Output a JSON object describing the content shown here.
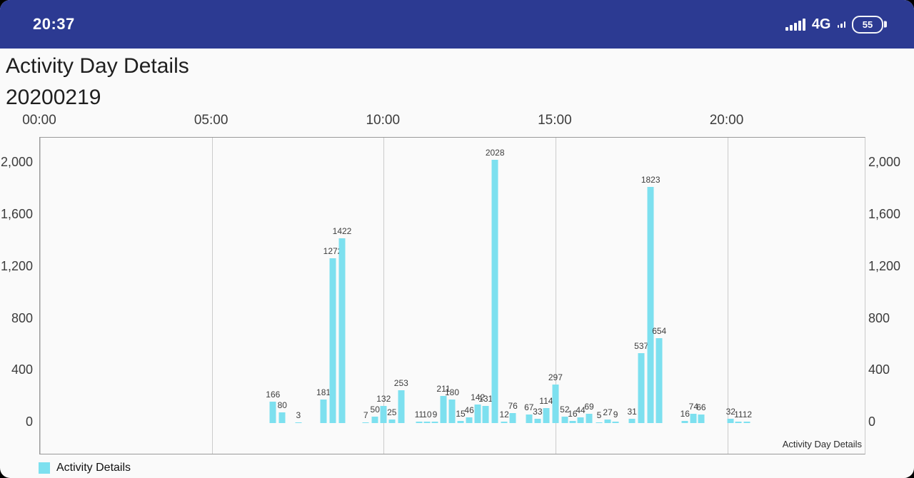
{
  "status_bar": {
    "time": "20:37",
    "network": "4G",
    "battery_percent": "55",
    "colors": {
      "background": "#2c3a92",
      "foreground": "#ffffff"
    }
  },
  "header": {
    "title": "Activity Day Details",
    "date": "20200219"
  },
  "chart_data": {
    "type": "bar",
    "title": "Activity Day Details",
    "subtitle": "20200219",
    "description": "Activity Day Details",
    "legend_label": "Activity Details",
    "legend_position": "bottom-left",
    "bar_color": "#7de0ef",
    "grid": "vertical-only",
    "x_axis": {
      "position": "top",
      "unit": "time-of-day",
      "range_hours": [
        0,
        24
      ],
      "tick_hours": [
        0,
        5,
        10,
        15,
        20
      ],
      "ticks": [
        "00:00",
        "05:00",
        "10:00",
        "15:00",
        "20:00"
      ]
    },
    "y_axis": {
      "sides": "both",
      "max": 2200,
      "tick_values": [
        0,
        400,
        800,
        1200,
        1600,
        2000
      ],
      "ticks": [
        "0",
        "400",
        "800",
        "1,200",
        "1,600",
        "2,000"
      ]
    },
    "series": [
      {
        "name": "Activity Details",
        "color": "#7de0ef",
        "points_format": [
          "hour",
          "value"
        ],
        "points": [
          [
            6.78,
            166
          ],
          [
            7.05,
            80
          ],
          [
            7.52,
            3
          ],
          [
            8.25,
            181
          ],
          [
            8.52,
            1272
          ],
          [
            8.79,
            1422
          ],
          [
            9.48,
            7
          ],
          [
            9.75,
            50
          ],
          [
            10.0,
            132
          ],
          [
            10.24,
            25
          ],
          [
            10.51,
            253
          ],
          [
            11.03,
            11
          ],
          [
            11.26,
            10
          ],
          [
            11.49,
            9
          ],
          [
            11.74,
            211
          ],
          [
            11.99,
            180
          ],
          [
            12.24,
            15
          ],
          [
            12.49,
            46
          ],
          [
            12.74,
            142
          ],
          [
            12.97,
            131
          ],
          [
            13.24,
            2028
          ],
          [
            13.51,
            12
          ],
          [
            13.76,
            76
          ],
          [
            14.23,
            67
          ],
          [
            14.48,
            33
          ],
          [
            14.73,
            114
          ],
          [
            15.0,
            297
          ],
          [
            15.27,
            52
          ],
          [
            15.5,
            16
          ],
          [
            15.73,
            44
          ],
          [
            15.98,
            69
          ],
          [
            16.27,
            5
          ],
          [
            16.52,
            27
          ],
          [
            16.75,
            9
          ],
          [
            17.23,
            31
          ],
          [
            17.5,
            537
          ],
          [
            17.77,
            1823
          ],
          [
            18.02,
            654
          ],
          [
            18.77,
            16
          ],
          [
            19.02,
            74
          ],
          [
            19.24,
            66
          ],
          [
            20.1,
            32
          ],
          [
            20.33,
            11
          ],
          [
            20.58,
            12
          ]
        ]
      }
    ]
  }
}
